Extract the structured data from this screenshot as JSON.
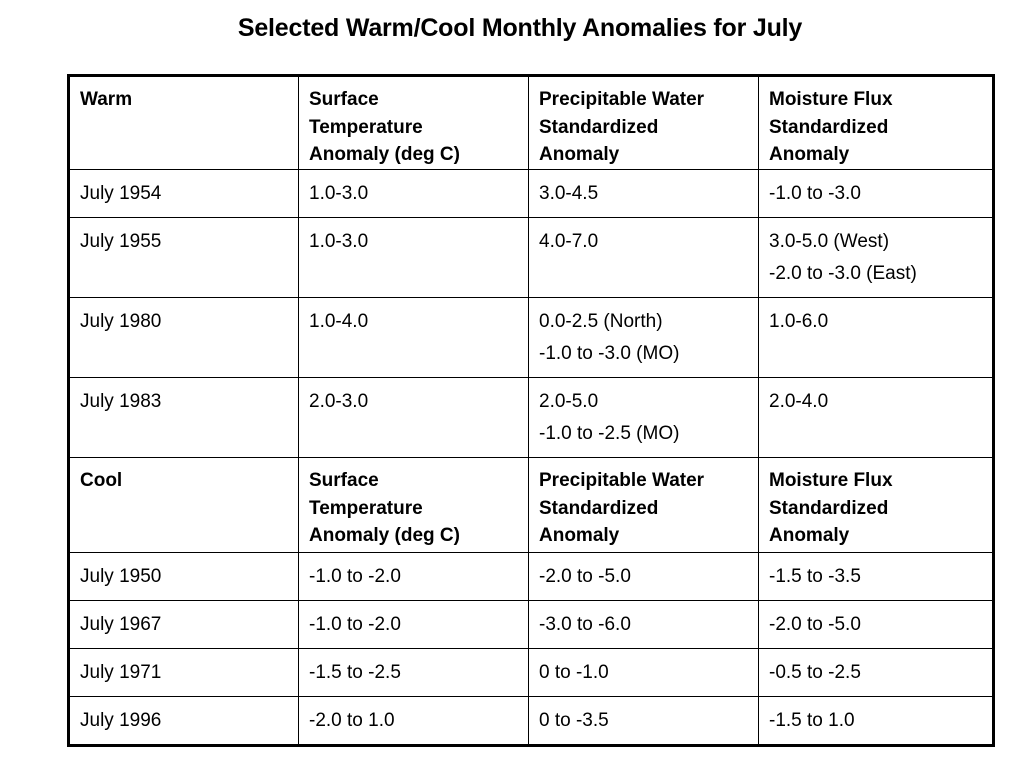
{
  "title": "Selected Warm/Cool Monthly Anomalies for July",
  "table": {
    "warm_header": [
      "Warm",
      "Surface Temperature Anomaly (deg C)",
      "Precipitable Water Standardized Anomaly",
      "Moisture Flux Standardized Anomaly"
    ],
    "warm_header_lines": [
      [
        "Warm"
      ],
      [
        "Surface",
        "Temperature",
        "Anomaly (deg C)"
      ],
      [
        "Precipitable Water",
        "Standardized",
        "Anomaly"
      ],
      [
        "Moisture Flux",
        "Standardized",
        "Anomaly"
      ]
    ],
    "warm_rows": [
      {
        "month": "July 1954",
        "surface_temp": "1.0-3.0",
        "precip_water": [
          "3.0-4.5"
        ],
        "moisture_flux": [
          "-1.0 to -3.0"
        ]
      },
      {
        "month": "July 1955",
        "surface_temp": "1.0-3.0",
        "precip_water": [
          "4.0-7.0"
        ],
        "moisture_flux": [
          "3.0-5.0 (West)",
          "-2.0 to -3.0 (East)"
        ]
      },
      {
        "month": "July 1980",
        "surface_temp": "1.0-4.0",
        "precip_water": [
          "0.0-2.5 (North)",
          "-1.0 to -3.0 (MO)"
        ],
        "moisture_flux": [
          "1.0-6.0"
        ]
      },
      {
        "month": "July 1983",
        "surface_temp": "2.0-3.0",
        "precip_water": [
          "2.0-5.0",
          "-1.0 to -2.5 (MO)"
        ],
        "moisture_flux": [
          "2.0-4.0"
        ]
      }
    ],
    "cool_header_lines": [
      [
        "Cool"
      ],
      [
        "Surface",
        "Temperature",
        "Anomaly (deg C)"
      ],
      [
        "Precipitable Water",
        "Standardized",
        "Anomaly"
      ],
      [
        "Moisture Flux",
        "Standardized",
        "Anomaly"
      ]
    ],
    "cool_rows": [
      {
        "month": "July 1950",
        "surface_temp": "-1.0 to -2.0",
        "precip_water": [
          "-2.0 to -5.0"
        ],
        "moisture_flux": [
          "-1.5 to -3.5"
        ]
      },
      {
        "month": "July 1967",
        "surface_temp": "-1.0 to -2.0",
        "precip_water": [
          "-3.0 to -6.0"
        ],
        "moisture_flux": [
          "-2.0 to -5.0"
        ]
      },
      {
        "month": "July 1971",
        "surface_temp": "-1.5 to -2.5",
        "precip_water": [
          "0 to -1.0"
        ],
        "moisture_flux": [
          "-0.5 to -2.5"
        ]
      },
      {
        "month": "July 1996",
        "surface_temp": "-2.0 to 1.0",
        "precip_water": [
          "0 to -3.5"
        ],
        "moisture_flux": [
          "-1.5 to 1.0"
        ]
      }
    ]
  }
}
